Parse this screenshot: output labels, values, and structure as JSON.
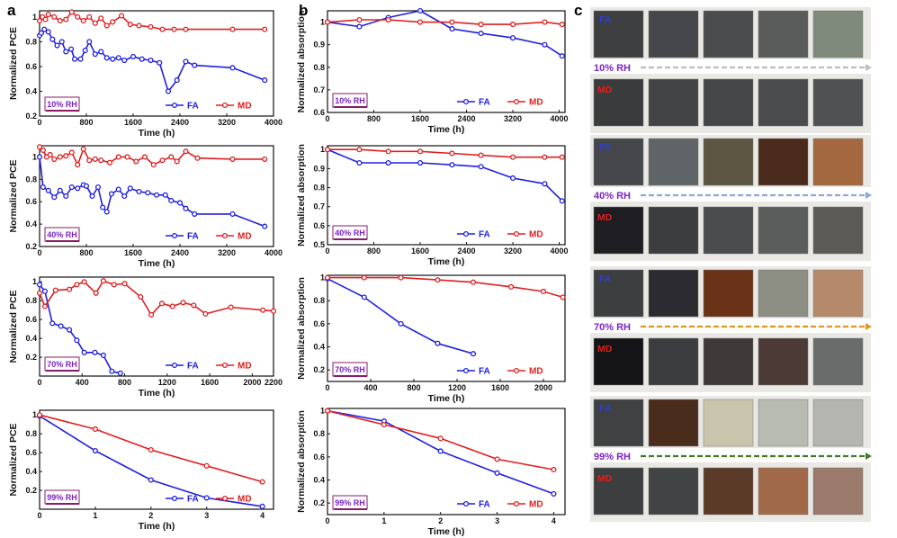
{
  "panel_labels": {
    "a": "a",
    "b": "b",
    "c": "c"
  },
  "legend": {
    "fa": "FA",
    "md": "MD"
  },
  "colors": {
    "fa": "#1f1fe0",
    "md": "#e01f1f",
    "rh_text": "#7a22c8"
  },
  "chart_data": [
    {
      "id": "a1",
      "type": "line",
      "xlabel": "Time (h)",
      "ylabel": "Normalized PCE",
      "xlim": [
        0,
        4000
      ],
      "ylim": [
        0.2,
        1.05
      ],
      "xticks": [
        0,
        800,
        1600,
        2400,
        3200,
        4000
      ],
      "yticks": [
        0.2,
        0.4,
        0.6,
        0.8,
        1.0
      ],
      "tag": "10% RH",
      "series": [
        {
          "name": "FA",
          "x": [
            0,
            30,
            80,
            150,
            220,
            300,
            380,
            450,
            540,
            600,
            700,
            780,
            850,
            950,
            1050,
            1150,
            1250,
            1350,
            1450,
            1600,
            1750,
            1900,
            2050,
            2200,
            2350,
            2500,
            2650,
            3300,
            3850
          ],
          "y": [
            0.85,
            0.87,
            0.9,
            0.88,
            0.82,
            0.77,
            0.8,
            0.72,
            0.74,
            0.66,
            0.66,
            0.73,
            0.8,
            0.7,
            0.72,
            0.67,
            0.66,
            0.67,
            0.65,
            0.68,
            0.66,
            0.65,
            0.63,
            0.4,
            0.49,
            0.64,
            0.61,
            0.59,
            0.49
          ]
        },
        {
          "name": "MD",
          "x": [
            0,
            50,
            100,
            150,
            250,
            350,
            450,
            550,
            650,
            750,
            850,
            950,
            1050,
            1150,
            1250,
            1400,
            1550,
            1700,
            1900,
            2100,
            2300,
            2500,
            3300,
            3850
          ],
          "y": [
            0.97,
            1.0,
            0.98,
            1.02,
            1.0,
            0.97,
            0.98,
            1.04,
            1.0,
            0.97,
            1.0,
            0.95,
            0.99,
            0.93,
            0.96,
            1.01,
            0.94,
            0.93,
            0.92,
            0.9,
            0.9,
            0.9,
            0.9,
            0.9
          ]
        }
      ]
    },
    {
      "id": "a2",
      "type": "line",
      "xlabel": "Time (h)",
      "ylabel": "Normalized PCE",
      "xlim": [
        0,
        4000
      ],
      "ylim": [
        0.2,
        1.1
      ],
      "xticks": [
        0,
        800,
        1600,
        2400,
        3200,
        4000
      ],
      "yticks": [
        0.2,
        0.4,
        0.6,
        0.8,
        1.0
      ],
      "tag": "40% RH",
      "series": [
        {
          "name": "FA",
          "x": [
            0,
            60,
            150,
            250,
            350,
            450,
            550,
            650,
            750,
            800,
            900,
            1000,
            1080,
            1150,
            1230,
            1350,
            1450,
            1550,
            1700,
            1850,
            2000,
            2150,
            2250,
            2400,
            2500,
            2650,
            3300,
            3850
          ],
          "y": [
            1.0,
            0.73,
            0.7,
            0.64,
            0.7,
            0.65,
            0.73,
            0.72,
            0.75,
            0.74,
            0.65,
            0.73,
            0.55,
            0.51,
            0.67,
            0.71,
            0.65,
            0.72,
            0.69,
            0.68,
            0.66,
            0.66,
            0.61,
            0.59,
            0.54,
            0.49,
            0.49,
            0.38
          ]
        },
        {
          "name": "MD",
          "x": [
            0,
            60,
            120,
            180,
            250,
            350,
            450,
            550,
            650,
            750,
            850,
            950,
            1050,
            1200,
            1350,
            1500,
            1650,
            1800,
            1950,
            2100,
            2250,
            2350,
            2500,
            2700,
            3300,
            3850
          ],
          "y": [
            1.09,
            1.06,
            1.0,
            1.02,
            0.98,
            1.0,
            1.01,
            1.04,
            0.93,
            1.07,
            0.97,
            0.98,
            0.97,
            0.95,
            1.0,
            1.0,
            0.96,
            1.0,
            0.93,
            0.97,
            1.0,
            0.96,
            1.05,
            0.99,
            0.98,
            0.98
          ]
        }
      ]
    },
    {
      "id": "a3",
      "type": "line",
      "xlabel": "Time (h)",
      "ylabel": "Normalized PCE",
      "xlim": [
        0,
        2200
      ],
      "ylim": [
        0,
        1.05
      ],
      "xticks": [
        0,
        400,
        800,
        1200,
        1600,
        2000,
        2200
      ],
      "yticks": [
        0.2,
        0.4,
        0.6,
        0.8,
        1.0
      ],
      "tag": "70% RH",
      "series": [
        {
          "name": "FA",
          "x": [
            0,
            50,
            120,
            200,
            280,
            350,
            420,
            520,
            600,
            680,
            760
          ],
          "y": [
            0.97,
            0.9,
            0.56,
            0.53,
            0.49,
            0.38,
            0.25,
            0.25,
            0.22,
            0.05,
            0.03
          ]
        },
        {
          "name": "MD",
          "x": [
            0,
            50,
            150,
            280,
            350,
            420,
            530,
            600,
            700,
            800,
            950,
            1050,
            1150,
            1250,
            1350,
            1450,
            1560,
            1800,
            2100,
            2200
          ],
          "y": [
            0.88,
            0.74,
            0.91,
            0.92,
            0.97,
            1.0,
            0.88,
            1.01,
            0.97,
            0.98,
            0.84,
            0.65,
            0.77,
            0.74,
            0.78,
            0.75,
            0.66,
            0.73,
            0.7,
            0.69
          ]
        }
      ]
    },
    {
      "id": "a4",
      "type": "line",
      "xlabel": "Time (h)",
      "ylabel": "Normalized PCE",
      "xlim": [
        0,
        4.2
      ],
      "ylim": [
        0,
        1.05
      ],
      "xticks": [
        0,
        1,
        2,
        3,
        4
      ],
      "yticks": [
        0.2,
        0.4,
        0.6,
        0.8,
        1.0
      ],
      "tag": "99% RH",
      "series": [
        {
          "name": "FA",
          "x": [
            0,
            1,
            2,
            3,
            4
          ],
          "y": [
            0.99,
            0.62,
            0.31,
            0.12,
            0.03
          ]
        },
        {
          "name": "MD",
          "x": [
            0,
            1,
            2,
            3,
            4
          ],
          "y": [
            1.0,
            0.85,
            0.63,
            0.46,
            0.29
          ]
        }
      ]
    },
    {
      "id": "b1",
      "type": "line",
      "xlabel": "Time (h)",
      "ylabel": "Normalized absorption",
      "xlim": [
        0,
        4100
      ],
      "ylim": [
        0.6,
        1.05
      ],
      "xticks": [
        0,
        800,
        1600,
        2400,
        3200,
        4000
      ],
      "yticks": [
        0.6,
        0.7,
        0.8,
        0.9,
        1.0
      ],
      "tag": "10% RH",
      "series": [
        {
          "name": "FA",
          "x": [
            0,
            550,
            1050,
            1600,
            2150,
            2650,
            3200,
            3750,
            4050
          ],
          "y": [
            1.0,
            0.98,
            1.02,
            1.05,
            0.97,
            0.95,
            0.93,
            0.9,
            0.85
          ]
        },
        {
          "name": "MD",
          "x": [
            0,
            550,
            1050,
            1600,
            2150,
            2650,
            3200,
            3750,
            4050
          ],
          "y": [
            1.0,
            1.01,
            1.01,
            1.0,
            1.0,
            0.99,
            0.99,
            1.0,
            0.99
          ]
        }
      ]
    },
    {
      "id": "b2",
      "type": "line",
      "xlabel": "Time (h)",
      "ylabel": "Normalized absorption",
      "xlim": [
        0,
        4100
      ],
      "ylim": [
        0.5,
        1.02
      ],
      "xticks": [
        0,
        800,
        1600,
        2400,
        3200,
        4000
      ],
      "yticks": [
        0.5,
        0.6,
        0.7,
        0.8,
        0.9,
        1.0
      ],
      "tag": "40% RH",
      "series": [
        {
          "name": "FA",
          "x": [
            0,
            550,
            1050,
            1600,
            2150,
            2650,
            3200,
            3750,
            4050
          ],
          "y": [
            1.0,
            0.93,
            0.93,
            0.93,
            0.92,
            0.91,
            0.85,
            0.82,
            0.73
          ]
        },
        {
          "name": "MD",
          "x": [
            0,
            550,
            1050,
            1600,
            2150,
            2650,
            3200,
            3750,
            4050
          ],
          "y": [
            1.0,
            1.0,
            0.99,
            0.99,
            0.98,
            0.97,
            0.96,
            0.96,
            0.96
          ]
        }
      ]
    },
    {
      "id": "b3",
      "type": "line",
      "xlabel": "Time (h)",
      "ylabel": "Normalized absorption",
      "xlim": [
        0,
        2200
      ],
      "ylim": [
        0.1,
        1.02
      ],
      "xticks": [
        0,
        400,
        800,
        1200,
        1600,
        2000
      ],
      "yticks": [
        0.2,
        0.4,
        0.6,
        0.8,
        1.0
      ],
      "tag": "70% RH",
      "series": [
        {
          "name": "FA",
          "x": [
            0,
            340,
            680,
            1020,
            1350
          ],
          "y": [
            0.99,
            0.83,
            0.6,
            0.43,
            0.34
          ]
        },
        {
          "name": "MD",
          "x": [
            0,
            340,
            680,
            1020,
            1350,
            1700,
            2000,
            2180
          ],
          "y": [
            1.0,
            1.0,
            1.0,
            0.98,
            0.96,
            0.92,
            0.88,
            0.83
          ]
        }
      ]
    },
    {
      "id": "b4",
      "type": "line",
      "xlabel": "Time (h)",
      "ylabel": "Normalized absorption",
      "xlim": [
        0,
        4.2
      ],
      "ylim": [
        0.1,
        1.02
      ],
      "xticks": [
        0,
        1,
        2,
        3,
        4
      ],
      "yticks": [
        0.2,
        0.4,
        0.6,
        0.8,
        1.0
      ],
      "tag": "99% RH",
      "series": [
        {
          "name": "FA",
          "x": [
            0,
            1,
            2,
            3,
            4
          ],
          "y": [
            1.0,
            0.91,
            0.65,
            0.46,
            0.28
          ]
        },
        {
          "name": "MD",
          "x": [
            0,
            1,
            2,
            3,
            4
          ],
          "y": [
            1.0,
            0.88,
            0.76,
            0.58,
            0.49
          ]
        }
      ]
    }
  ],
  "photos": {
    "groups": [
      {
        "rh": "10% RH",
        "arrow_color": "#bdbdbd",
        "fa_tiles": [
          "#3e3f41",
          "#46474a",
          "#4a4b4d",
          "#5a5c5b",
          "#7f8a7d"
        ],
        "md_tiles": [
          "#3a3b3d",
          "#434446",
          "#454648",
          "#4a4b4c",
          "#505152"
        ]
      },
      {
        "rh": "40% RH",
        "arrow_color": "#8aa6df",
        "fa_tiles": [
          "#45474a",
          "#5f6567",
          "#5c5642",
          "#4a2a1a",
          "#a3683f"
        ],
        "md_tiles": [
          "#1e1e22",
          "#3c3d3f",
          "#4b4c4e",
          "#5a5d5c",
          "#5b5a55"
        ]
      },
      {
        "rh": "70% RH",
        "arrow_color": "#d89a1e",
        "fa_tiles": [
          "#3d3e40",
          "#2c2c30",
          "#6a3216",
          "#8c8d83",
          "#b58a6a"
        ],
        "md_tiles": [
          "#141416",
          "#3b3c3e",
          "#3e3a3a",
          "#4b3a36",
          "#6a6c6b"
        ]
      },
      {
        "rh": "99% RH",
        "arrow_color": "#3f7a25",
        "fa_tiles": [
          "#3f4143",
          "#4a2c1d",
          "#c8c5ac",
          "#b8bbb2",
          "#b4b5b0"
        ],
        "md_tiles": [
          "#3d3e40",
          "#424345",
          "#5c3a28",
          "#a0694a",
          "#9a7a6a"
        ]
      }
    ]
  }
}
